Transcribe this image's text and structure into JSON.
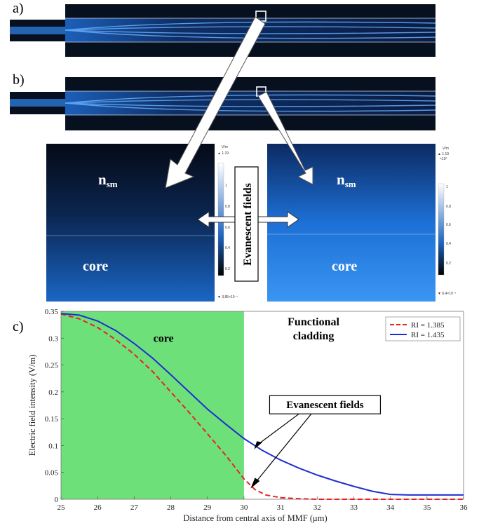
{
  "panel_labels": {
    "a": "a)",
    "b": "b)",
    "c": "c)"
  },
  "insets": {
    "left": {
      "region_top": "n",
      "region_top_sub": "sm",
      "region_bottom": "core",
      "colorbar": {
        "unit": "V/m",
        "max": "▲ 1.19",
        "min": "▼ 3.85×10⁻⁷",
        "ticks": [
          "1",
          "0.8",
          "0.6",
          "0.4",
          "0.2"
        ]
      }
    },
    "right": {
      "region_top": "n",
      "region_top_sub": "sm",
      "region_bottom": "core",
      "colorbar": {
        "unit": "V/m",
        "max": "▲ 1.19",
        "max_exp": "×10⁰",
        "min": "▼ 6.4×10⁻⁷",
        "ticks": [
          "1",
          "0.8",
          "0.6",
          "0.4",
          "0.2"
        ]
      }
    },
    "center_label": "Evanescent fields"
  },
  "colors": {
    "field_dark": "#060b1a",
    "field_bright": "#2f8ff0",
    "core_fill": "#6ee07a",
    "series_red": "#e8231f",
    "series_blue": "#1f2fd0"
  },
  "chart_data": {
    "type": "line",
    "title": "",
    "xlabel": "Distance from central axis of MMF (μm)",
    "ylabel": "Electric field intensity (V/m)",
    "xlim": [
      25,
      36
    ],
    "ylim": [
      0,
      0.35
    ],
    "xticks": [
      "25",
      "26",
      "27",
      "28",
      "29",
      "30",
      "31",
      "32",
      "33",
      "34",
      "35",
      "36"
    ],
    "yticks": [
      "0",
      "0.05",
      "0.1",
      "0.15",
      "0.2",
      "0.25",
      "0.3",
      "0.35"
    ],
    "legend_position": "top-right",
    "grid": false,
    "core_region": {
      "x": [
        25,
        30
      ],
      "label": "core"
    },
    "cladding_label_line1": "Functional",
    "cladding_label_line2": "cladding",
    "annotation": "Evanescent fields",
    "series": [
      {
        "name": "RI = 1.385",
        "style": "dashed",
        "color": "#e8231f",
        "x": [
          25,
          25.5,
          26,
          26.5,
          27,
          27.5,
          28,
          28.5,
          29,
          29.5,
          30,
          30.3,
          30.6,
          31,
          31.5,
          32,
          33,
          34,
          35,
          36
        ],
        "y": [
          0.345,
          0.336,
          0.32,
          0.297,
          0.27,
          0.238,
          0.2,
          0.162,
          0.122,
          0.082,
          0.038,
          0.018,
          0.008,
          0.003,
          0.001,
          0.0,
          0.0,
          0.0,
          0.0,
          0.0
        ]
      },
      {
        "name": "RI = 1.435",
        "style": "solid",
        "color": "#1f2fd0",
        "x": [
          25,
          25.5,
          26,
          26.5,
          27,
          27.5,
          28,
          28.5,
          29,
          29.5,
          30,
          30.5,
          31,
          31.5,
          32,
          32.5,
          33,
          33.5,
          34,
          34.5,
          35,
          35.5,
          36
        ],
        "y": [
          0.346,
          0.343,
          0.332,
          0.314,
          0.29,
          0.263,
          0.232,
          0.2,
          0.168,
          0.14,
          0.113,
          0.091,
          0.073,
          0.058,
          0.045,
          0.034,
          0.024,
          0.015,
          0.009,
          0.008,
          0.008,
          0.008,
          0.008
        ]
      }
    ]
  }
}
